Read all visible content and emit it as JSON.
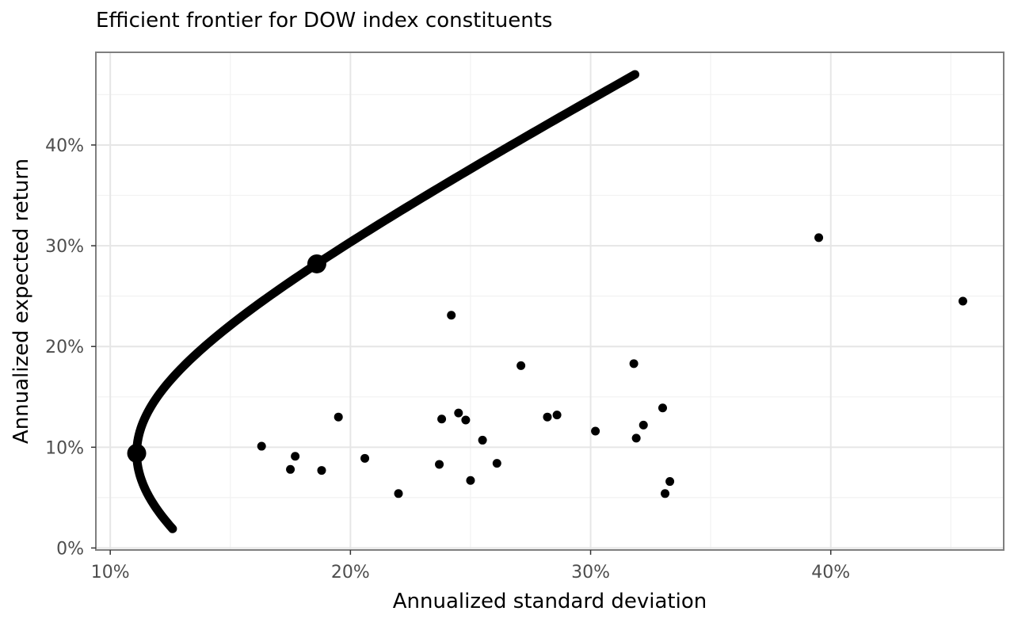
{
  "chart_data": {
    "type": "scatter",
    "title": "Efficient frontier for DOW index constituents",
    "xlabel": "Annualized standard deviation",
    "ylabel": "Annualized expected return",
    "xlim": [
      0.094,
      0.472
    ],
    "ylim": [
      -0.002,
      0.492
    ],
    "x_ticks": [
      {
        "value": 0.1,
        "label": "10%"
      },
      {
        "value": 0.2,
        "label": "20%"
      },
      {
        "value": 0.3,
        "label": "30%"
      },
      {
        "value": 0.4,
        "label": "40%"
      }
    ],
    "y_ticks": [
      {
        "value": 0.0,
        "label": "0%"
      },
      {
        "value": 0.1,
        "label": "10%"
      },
      {
        "value": 0.2,
        "label": "20%"
      },
      {
        "value": 0.3,
        "label": "30%"
      },
      {
        "value": 0.4,
        "label": "40%"
      }
    ],
    "grid": true,
    "frontier": {
      "min_variance": {
        "sd": 0.111,
        "mu": 0.094
      },
      "mu_range": [
        0.019,
        0.47
      ],
      "points": [
        {
          "sd": 0.126,
          "mu": 0.019
        },
        {
          "sd": 0.118,
          "mu": 0.04
        },
        {
          "sd": 0.113,
          "mu": 0.06
        },
        {
          "sd": 0.111,
          "mu": 0.08
        },
        {
          "sd": 0.111,
          "mu": 0.094
        },
        {
          "sd": 0.112,
          "mu": 0.11
        },
        {
          "sd": 0.115,
          "mu": 0.13
        },
        {
          "sd": 0.121,
          "mu": 0.15
        },
        {
          "sd": 0.129,
          "mu": 0.17
        },
        {
          "sd": 0.14,
          "mu": 0.195
        },
        {
          "sd": 0.153,
          "mu": 0.22
        },
        {
          "sd": 0.167,
          "mu": 0.25
        },
        {
          "sd": 0.186,
          "mu": 0.282
        },
        {
          "sd": 0.205,
          "mu": 0.31
        },
        {
          "sd": 0.228,
          "mu": 0.34
        },
        {
          "sd": 0.253,
          "mu": 0.37
        },
        {
          "sd": 0.278,
          "mu": 0.41
        },
        {
          "sd": 0.3,
          "mu": 0.44
        },
        {
          "sd": 0.316,
          "mu": 0.47
        }
      ]
    },
    "highlighted_portfolios": [
      {
        "sd": 0.111,
        "mu": 0.094
      },
      {
        "sd": 0.186,
        "mu": 0.282
      }
    ],
    "assets": [
      {
        "sd": 0.163,
        "mu": 0.101
      },
      {
        "sd": 0.175,
        "mu": 0.078
      },
      {
        "sd": 0.177,
        "mu": 0.091
      },
      {
        "sd": 0.188,
        "mu": 0.077
      },
      {
        "sd": 0.195,
        "mu": 0.13
      },
      {
        "sd": 0.206,
        "mu": 0.089
      },
      {
        "sd": 0.22,
        "mu": 0.054
      },
      {
        "sd": 0.237,
        "mu": 0.083
      },
      {
        "sd": 0.238,
        "mu": 0.128
      },
      {
        "sd": 0.242,
        "mu": 0.231
      },
      {
        "sd": 0.245,
        "mu": 0.134
      },
      {
        "sd": 0.248,
        "mu": 0.127
      },
      {
        "sd": 0.25,
        "mu": 0.067
      },
      {
        "sd": 0.255,
        "mu": 0.107
      },
      {
        "sd": 0.261,
        "mu": 0.084
      },
      {
        "sd": 0.271,
        "mu": 0.181
      },
      {
        "sd": 0.282,
        "mu": 0.13
      },
      {
        "sd": 0.286,
        "mu": 0.132
      },
      {
        "sd": 0.302,
        "mu": 0.116
      },
      {
        "sd": 0.318,
        "mu": 0.183
      },
      {
        "sd": 0.319,
        "mu": 0.109
      },
      {
        "sd": 0.322,
        "mu": 0.122
      },
      {
        "sd": 0.33,
        "mu": 0.139
      },
      {
        "sd": 0.331,
        "mu": 0.054
      },
      {
        "sd": 0.333,
        "mu": 0.066
      },
      {
        "sd": 0.395,
        "mu": 0.308
      },
      {
        "sd": 0.455,
        "mu": 0.245
      }
    ]
  }
}
